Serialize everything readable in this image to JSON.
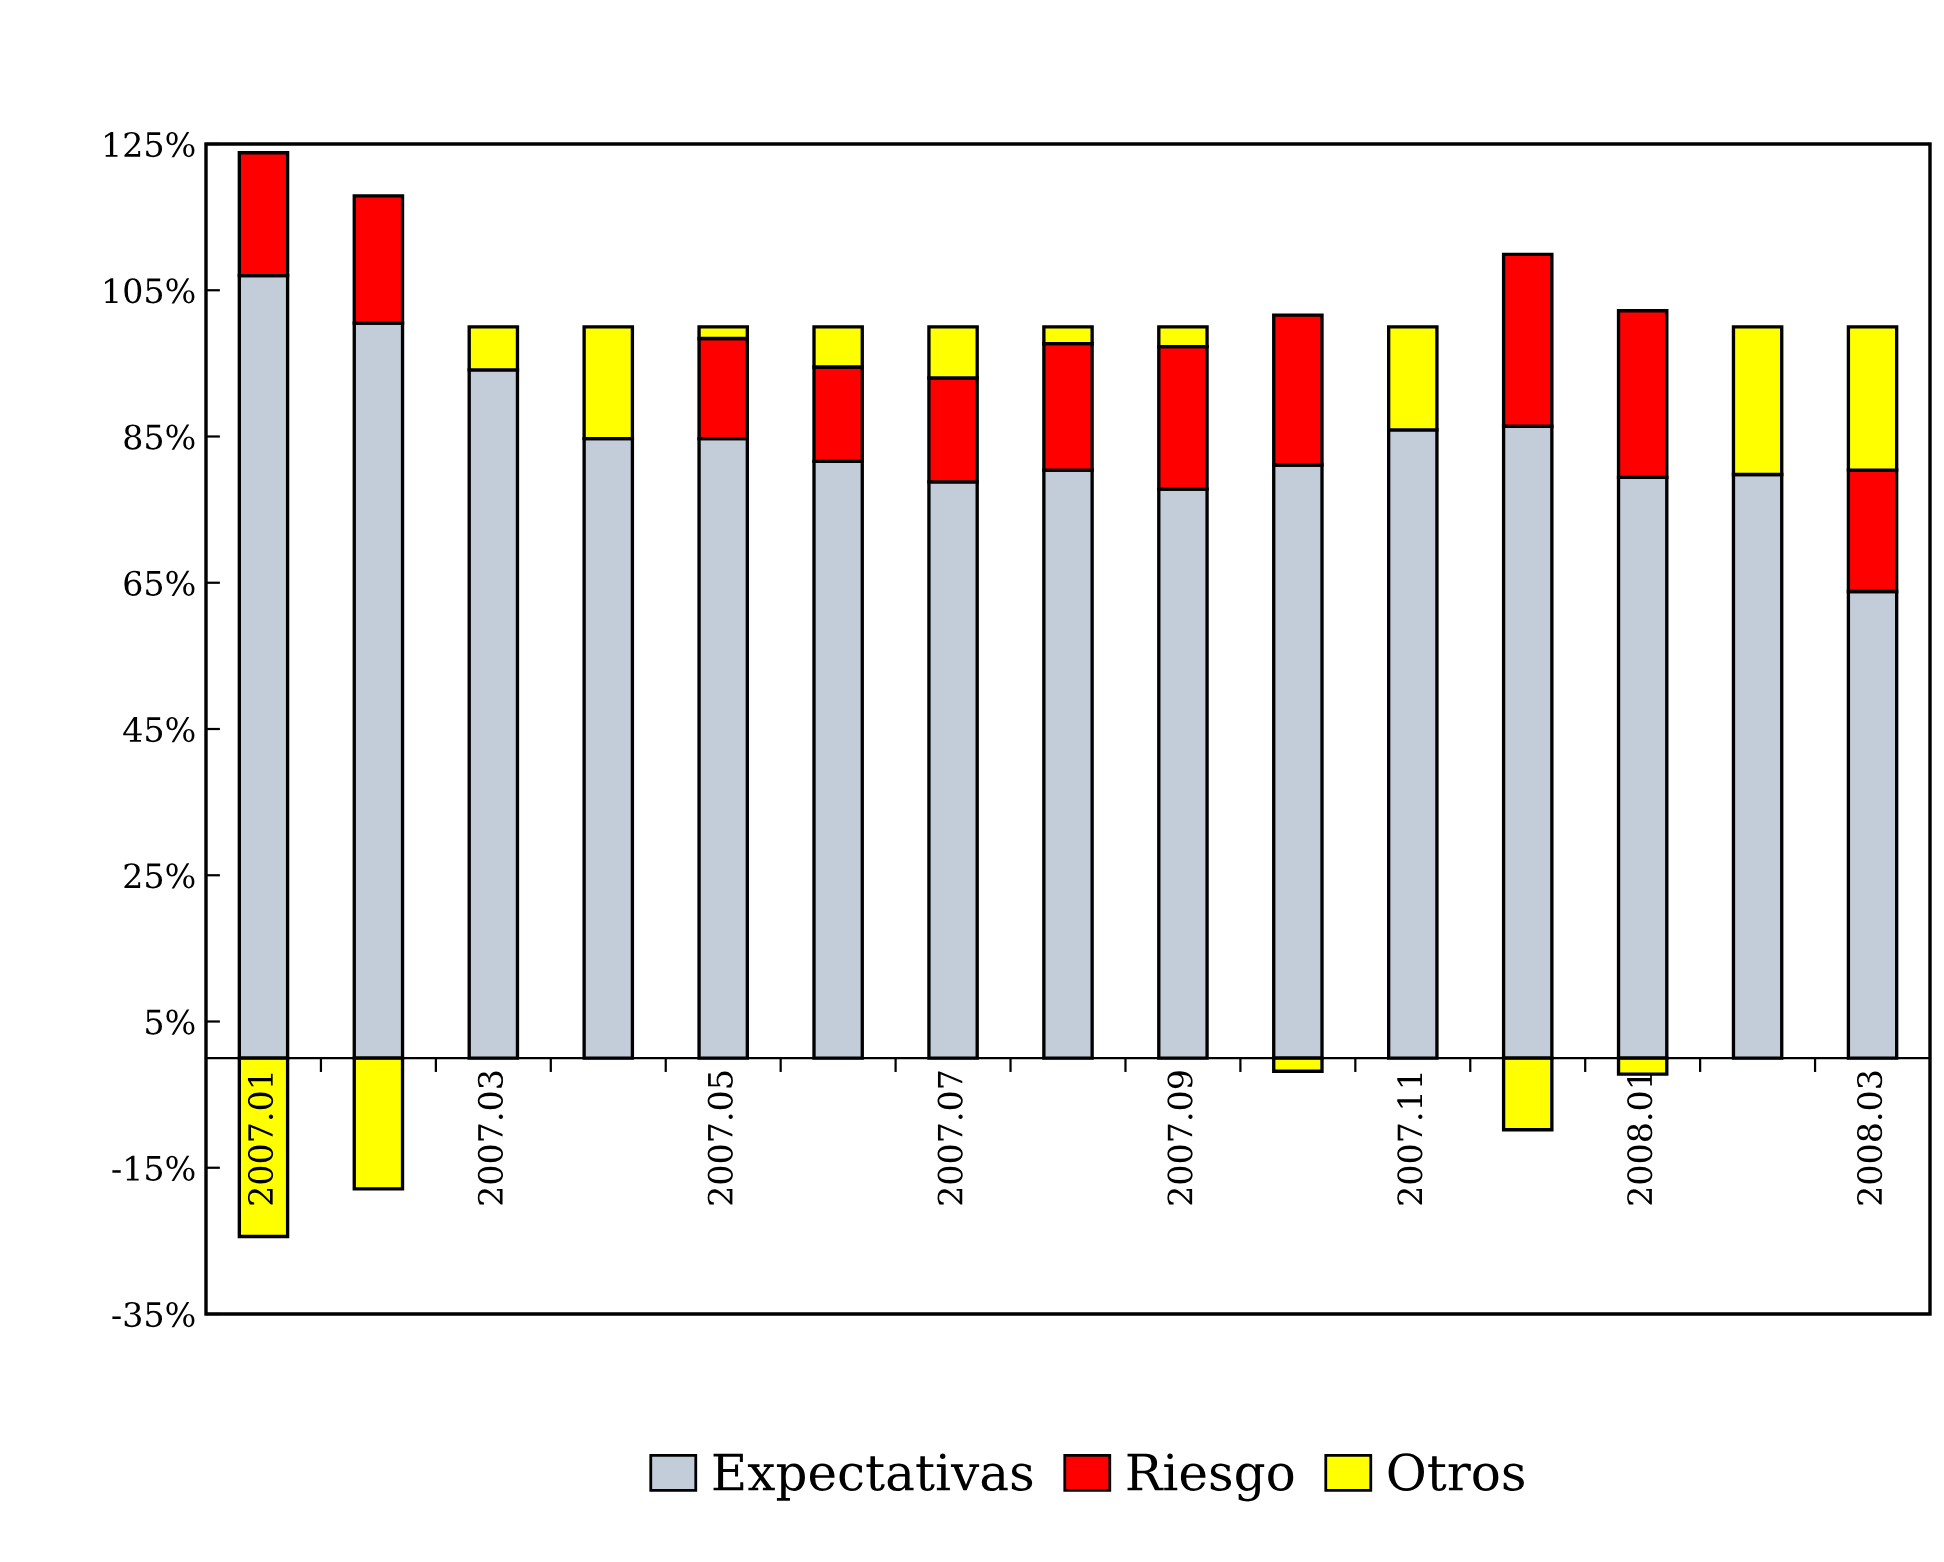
{
  "chart_data": {
    "type": "bar",
    "stacked": true,
    "categories": [
      "2007.01",
      null,
      "2007.03",
      null,
      "2007.05",
      null,
      "2007.07",
      null,
      "2007.09",
      null,
      "2007.11",
      null,
      "2008.01",
      null,
      "2008.03"
    ],
    "series": [
      {
        "name": "Expectativas",
        "color": "#c3ccd9",
        "values": [
          107.0,
          100.5,
          94.1,
          84.7,
          84.7,
          81.6,
          78.8,
          80.4,
          77.8,
          81.1,
          85.9,
          86.4,
          79.4,
          79.8,
          63.8
        ]
      },
      {
        "name": "Riesgo",
        "color": "#ff0000",
        "values": [
          16.8,
          17.4,
          null,
          null,
          13.7,
          12.9,
          14.2,
          17.3,
          19.5,
          20.5,
          null,
          23.5,
          22.8,
          null,
          16.6
        ]
      },
      {
        "name": "Otros",
        "color": "#ffff00",
        "values": [
          -24.4,
          -17.9,
          5.9,
          15.3,
          1.6,
          5.5,
          7.0,
          2.3,
          2.7,
          -1.8,
          14.1,
          -9.8,
          -2.2,
          20.2,
          19.6
        ]
      }
    ],
    "ylim": [
      -35,
      125
    ],
    "yticks": [
      {
        "value": -35,
        "label": "-35%"
      },
      {
        "value": -15,
        "label": "-15%"
      },
      {
        "value": 5,
        "label": "5%"
      },
      {
        "value": 25,
        "label": "25%"
      },
      {
        "value": 45,
        "label": "45%"
      },
      {
        "value": 65,
        "label": "65%"
      },
      {
        "value": 85,
        "label": "85%"
      },
      {
        "value": 105,
        "label": "105%"
      },
      {
        "value": 125,
        "label": "125%"
      }
    ],
    "grid": false,
    "legend": "bottom"
  }
}
